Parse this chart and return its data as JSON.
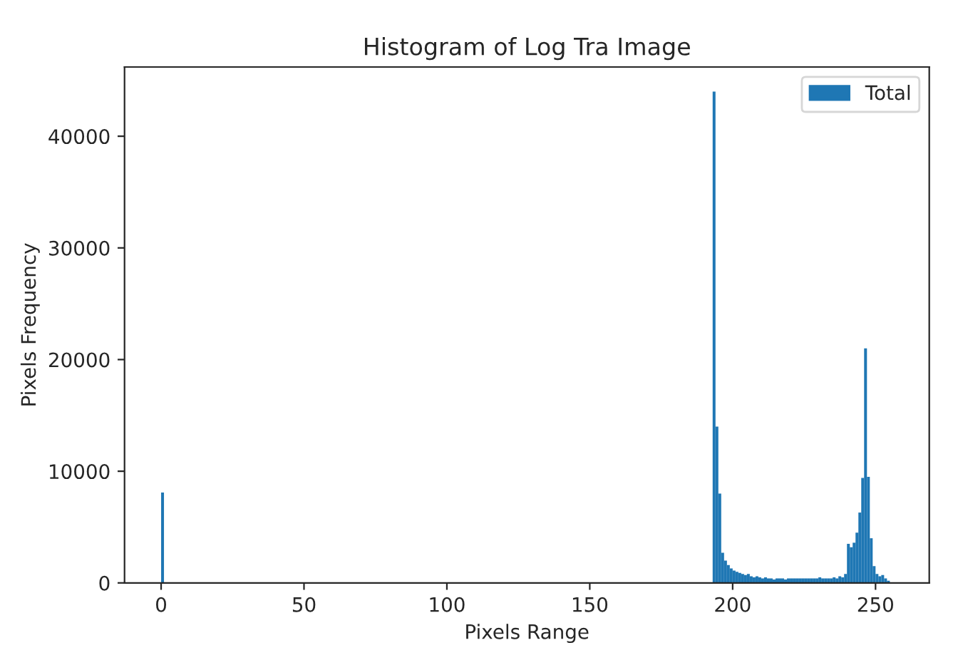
{
  "chart_data": {
    "type": "histogram",
    "title": "Histogram of Log Tra Image",
    "xlabel": "Pixels Range",
    "ylabel": "Pixels Frequency",
    "bins": [
      0,
      1,
      2,
      3,
      4,
      5,
      6,
      7,
      8,
      9,
      10,
      11,
      12,
      13,
      14,
      15,
      16,
      17,
      18,
      19,
      20,
      21,
      22,
      23,
      24,
      25,
      26,
      27,
      28,
      29,
      30,
      31,
      32,
      33,
      34,
      35,
      36,
      37,
      38,
      39,
      40,
      41,
      42,
      43,
      44,
      45,
      46,
      47,
      48,
      49,
      50,
      51,
      52,
      53,
      54,
      55,
      56,
      57,
      58,
      59,
      60,
      61,
      62,
      63,
      64,
      65,
      66,
      67,
      68,
      69,
      70,
      71,
      72,
      73,
      74,
      75,
      76,
      77,
      78,
      79,
      80,
      81,
      82,
      83,
      84,
      85,
      86,
      87,
      88,
      89,
      90,
      91,
      92,
      93,
      94,
      95,
      96,
      97,
      98,
      99,
      100,
      101,
      102,
      103,
      104,
      105,
      106,
      107,
      108,
      109,
      110,
      111,
      112,
      113,
      114,
      115,
      116,
      117,
      118,
      119,
      120,
      121,
      122,
      123,
      124,
      125,
      126,
      127,
      128,
      129,
      130,
      131,
      132,
      133,
      134,
      135,
      136,
      137,
      138,
      139,
      140,
      141,
      142,
      143,
      144,
      145,
      146,
      147,
      148,
      149,
      150,
      151,
      152,
      153,
      154,
      155,
      156,
      157,
      158,
      159,
      160,
      161,
      162,
      163,
      164,
      165,
      166,
      167,
      168,
      169,
      170,
      171,
      172,
      173,
      174,
      175,
      176,
      177,
      178,
      179,
      180,
      181,
      182,
      183,
      184,
      185,
      186,
      187,
      188,
      189,
      190,
      191,
      192,
      193,
      194,
      195,
      196,
      197,
      198,
      199,
      200,
      201,
      202,
      203,
      204,
      205,
      206,
      207,
      208,
      209,
      210,
      211,
      212,
      213,
      214,
      215,
      216,
      217,
      218,
      219,
      220,
      221,
      222,
      223,
      224,
      225,
      226,
      227,
      228,
      229,
      230,
      231,
      232,
      233,
      234,
      235,
      236,
      237,
      238,
      239,
      240,
      241,
      242,
      243,
      244,
      245,
      246,
      247,
      248,
      249,
      250,
      251,
      252,
      253,
      254,
      255,
      256
    ],
    "series": [
      {
        "name": "Total",
        "color": "#1f77b4",
        "values": [
          8100,
          0,
          0,
          0,
          0,
          0,
          0,
          0,
          0,
          0,
          0,
          0,
          0,
          0,
          0,
          0,
          0,
          0,
          0,
          0,
          0,
          0,
          0,
          0,
          0,
          0,
          0,
          0,
          0,
          0,
          0,
          0,
          0,
          0,
          0,
          0,
          0,
          0,
          0,
          0,
          0,
          0,
          0,
          0,
          0,
          0,
          0,
          0,
          0,
          0,
          0,
          0,
          0,
          0,
          0,
          0,
          0,
          0,
          0,
          0,
          0,
          0,
          0,
          0,
          0,
          0,
          0,
          0,
          0,
          0,
          0,
          0,
          0,
          0,
          0,
          0,
          0,
          0,
          0,
          0,
          0,
          0,
          0,
          0,
          0,
          0,
          0,
          0,
          0,
          0,
          0,
          0,
          0,
          0,
          0,
          0,
          0,
          0,
          0,
          0,
          0,
          0,
          0,
          0,
          0,
          0,
          0,
          0,
          0,
          0,
          0,
          0,
          0,
          0,
          0,
          0,
          0,
          0,
          0,
          0,
          0,
          0,
          0,
          0,
          0,
          0,
          0,
          0,
          0,
          0,
          0,
          0,
          0,
          0,
          0,
          0,
          0,
          0,
          0,
          0,
          0,
          0,
          0,
          0,
          0,
          0,
          0,
          0,
          0,
          0,
          0,
          0,
          0,
          0,
          0,
          0,
          0,
          0,
          0,
          0,
          0,
          0,
          0,
          0,
          0,
          0,
          0,
          0,
          0,
          0,
          0,
          0,
          0,
          0,
          0,
          0,
          0,
          0,
          0,
          0,
          0,
          0,
          0,
          0,
          0,
          0,
          0,
          0,
          0,
          0,
          0,
          0,
          0,
          44000,
          14000,
          8000,
          2700,
          2000,
          1600,
          1300,
          1100,
          1000,
          900,
          800,
          700,
          800,
          600,
          500,
          600,
          500,
          400,
          500,
          400,
          400,
          300,
          400,
          400,
          400,
          300,
          400,
          400,
          400,
          400,
          400,
          400,
          400,
          400,
          400,
          400,
          400,
          500,
          400,
          400,
          400,
          400,
          500,
          400,
          600,
          500,
          800,
          3500,
          3200,
          3600,
          4500,
          6300,
          9400,
          21000,
          9500,
          4000,
          1500,
          800,
          600,
          700,
          400,
          200,
          0
        ]
      }
    ],
    "xlim": [
      -12.8,
      268.8
    ],
    "ylim": [
      0,
      46200
    ],
    "xticks": [
      0,
      50,
      100,
      150,
      200,
      250
    ],
    "yticks": [
      0,
      10000,
      20000,
      30000,
      40000
    ],
    "legend": "top right",
    "grid": false
  }
}
